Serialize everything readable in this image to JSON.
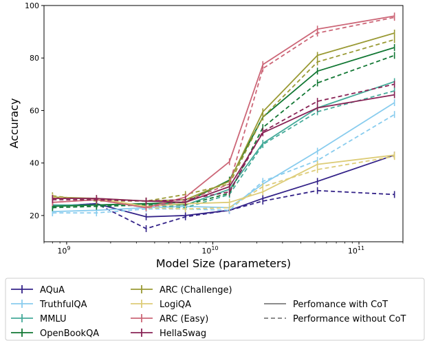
{
  "chart_data": {
    "type": "line",
    "xlabel": "Model Size (parameters)",
    "ylabel": "Accuracy",
    "xscale": "log",
    "xlim": [
      700000000,
      200000000000
    ],
    "ylim": [
      10,
      100
    ],
    "yticks": [
      20,
      40,
      60,
      80,
      100
    ],
    "xticks": [
      {
        "value": 1000000000,
        "base": "10",
        "exp": "9"
      },
      {
        "value": 10000000000,
        "base": "10",
        "exp": "10"
      },
      {
        "value": 100000000000,
        "base": "10",
        "exp": "11"
      }
    ],
    "grid": false,
    "legend_placement": "below",
    "x": [
      800000000,
      1600000000,
      3500000000,
      6500000000,
      13000000000,
      22000000000,
      52000000000,
      175000000000
    ],
    "series": [
      {
        "name": "AQuA",
        "color": "#332288",
        "with_cot": [
          23.5,
          24.5,
          19.5,
          20.0,
          22.0,
          26.5,
          33.0,
          43.0
        ],
        "without_cot": [
          23.5,
          24.5,
          15.0,
          19.5,
          22.0,
          25.5,
          29.5,
          28.0
        ]
      },
      {
        "name": "TruthfulQA",
        "color": "#88ccee",
        "with_cot": [
          21.5,
          22.0,
          23.0,
          23.5,
          23.0,
          32.0,
          44.5,
          63.0
        ],
        "without_cot": [
          21.0,
          21.0,
          22.5,
          22.5,
          22.0,
          33.0,
          41.0,
          58.5
        ]
      },
      {
        "name": "MMLU",
        "color": "#44aa99",
        "with_cot": [
          24.0,
          24.0,
          24.5,
          24.0,
          30.0,
          47.5,
          61.0,
          71.0
        ],
        "without_cot": [
          24.0,
          23.5,
          24.0,
          23.0,
          28.0,
          47.0,
          59.5,
          67.5
        ]
      },
      {
        "name": "OpenBookQA",
        "color": "#117733",
        "with_cot": [
          23.5,
          24.0,
          24.5,
          25.0,
          33.5,
          57.5,
          75.0,
          84.0
        ],
        "without_cot": [
          23.0,
          23.5,
          24.0,
          24.0,
          28.5,
          53.5,
          70.5,
          81.0
        ]
      },
      {
        "name": "ARC (Challenge)",
        "color": "#999933",
        "with_cot": [
          27.0,
          26.5,
          25.5,
          26.0,
          33.0,
          59.5,
          81.0,
          89.5
        ],
        "without_cot": [
          27.5,
          25.5,
          25.5,
          28.0,
          32.0,
          57.5,
          78.5,
          87.0
        ]
      },
      {
        "name": "LogiQA",
        "color": "#ddcc77",
        "with_cot": [
          26.5,
          26.5,
          23.5,
          24.5,
          25.0,
          29.0,
          39.5,
          43.0
        ],
        "without_cot": [
          27.0,
          26.0,
          23.0,
          22.5,
          23.0,
          31.0,
          37.5,
          42.5
        ]
      },
      {
        "name": "ARC (Easy)",
        "color": "#cc6677",
        "with_cot": [
          25.0,
          26.0,
          23.0,
          27.0,
          40.5,
          77.5,
          91.0,
          96.0
        ],
        "without_cot": [
          25.0,
          26.0,
          23.0,
          25.5,
          32.0,
          76.0,
          89.5,
          95.5
        ]
      },
      {
        "name": "HellaSwag",
        "color": "#882255",
        "with_cot": [
          26.5,
          26.5,
          25.5,
          25.0,
          31.0,
          51.5,
          61.0,
          66.0
        ],
        "without_cot": [
          26.0,
          26.0,
          25.5,
          26.0,
          29.0,
          52.0,
          63.5,
          70.0
        ]
      }
    ],
    "style_legend": [
      {
        "label": "Perfomance with CoT",
        "dash": "solid",
        "color": "#666666"
      },
      {
        "label": "Performance without CoT",
        "dash": "dashed",
        "color": "#666666"
      }
    ]
  }
}
